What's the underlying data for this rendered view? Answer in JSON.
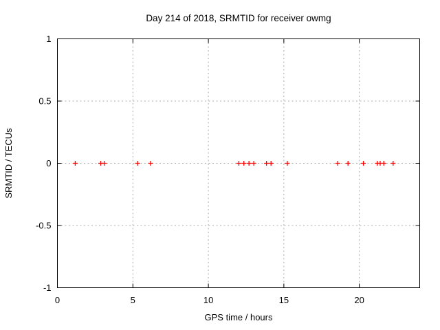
{
  "window": {
    "background": "#ffffff"
  },
  "chart_data": {
    "type": "scatter",
    "title": "Day 214 of 2018, SRMTID for receiver owmg",
    "xlabel": "GPS time / hours",
    "ylabel": "SRMTID / TECUs",
    "xlim": [
      0,
      24
    ],
    "ylim": [
      -1,
      1
    ],
    "xticks": [
      0,
      5,
      10,
      15,
      20
    ],
    "yticks": [
      1,
      0.5,
      0,
      -0.5,
      -1
    ],
    "grid": true,
    "grid_style": "dotted",
    "legend_position": "none",
    "marker": "plus",
    "colors": {
      "marker": "#ff0000",
      "grid": "#ababab",
      "border": "#000000",
      "background": "#ffffff",
      "text": "#000000"
    },
    "series": [
      {
        "name": "SRMTID",
        "points": [
          [
            1.18,
            0
          ],
          [
            2.87,
            0
          ],
          [
            3.1,
            0
          ],
          [
            5.31,
            0
          ],
          [
            6.17,
            0
          ],
          [
            12.02,
            0
          ],
          [
            12.35,
            0
          ],
          [
            12.69,
            0
          ],
          [
            13.01,
            0
          ],
          [
            13.85,
            0
          ],
          [
            14.15,
            0
          ],
          [
            15.23,
            0
          ],
          [
            18.57,
            0
          ],
          [
            19.25,
            0
          ],
          [
            20.27,
            0
          ],
          [
            21.19,
            0
          ],
          [
            21.38,
            0
          ],
          [
            21.62,
            0
          ],
          [
            22.24,
            0
          ]
        ]
      }
    ]
  }
}
